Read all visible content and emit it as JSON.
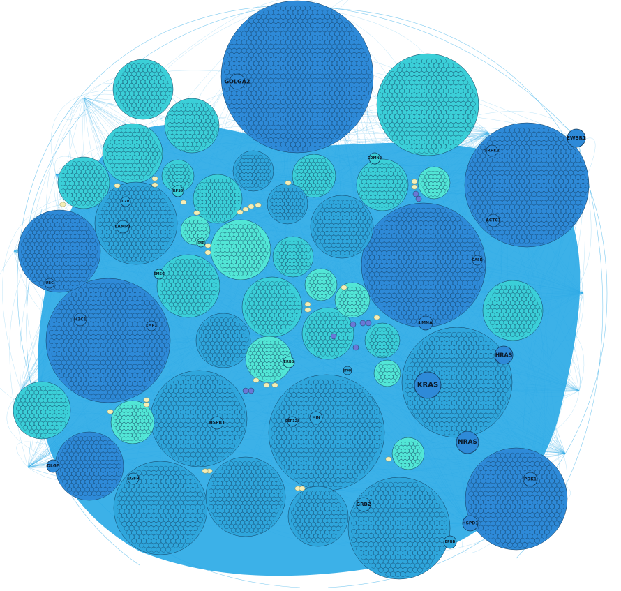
{
  "colors": {
    "edge": "#29a9e6",
    "dense_bg": "#27a8e6",
    "cluster_dark": "#2e8ad8",
    "cluster_mid": "#2fa6dc",
    "cluster_light": "#3bcfd8",
    "cluster_pale": "#52e6d6",
    "node_stroke": "#123a5a",
    "cream_node": "#f4eeb6",
    "purple_node": "#6a78d6"
  },
  "hub_nodes": [
    {
      "label": "GOLGA2"
    },
    {
      "label": "EWSR1"
    },
    {
      "label": "SRPK2"
    },
    {
      "label": "ACTC1"
    },
    {
      "label": "LMNA"
    },
    {
      "label": "KRAS"
    },
    {
      "label": "HRAS"
    },
    {
      "label": "NRAS"
    },
    {
      "label": "HSPD1"
    },
    {
      "label": "GRB2"
    },
    {
      "label": "PDK1"
    },
    {
      "label": "LAMP1"
    },
    {
      "label": "H3C1"
    },
    {
      "label": "EMR1"
    },
    {
      "label": "EGFR"
    },
    {
      "label": "HSPB1"
    },
    {
      "label": "MIN"
    },
    {
      "label": "CEP128"
    },
    {
      "label": "DLGF"
    },
    {
      "label": "UBC"
    },
    {
      "label": "CZR"
    },
    {
      "label": "EMSC"
    },
    {
      "label": "RPS6"
    },
    {
      "label": "CASK"
    },
    {
      "label": "EPBB"
    },
    {
      "label": "CDMN2"
    },
    {
      "label": "ERBB"
    },
    {
      "label": "DSP"
    },
    {
      "label": "STMN"
    }
  ]
}
